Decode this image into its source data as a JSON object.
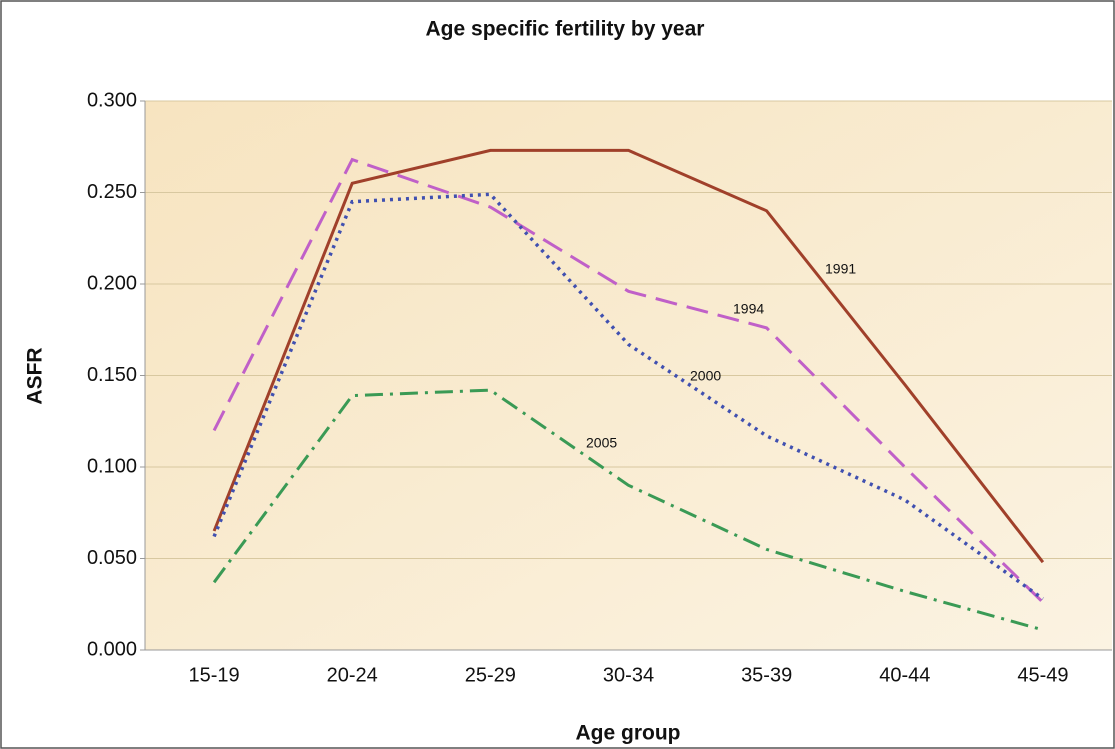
{
  "chart_data": {
    "type": "line",
    "title": "Age specific fertility by year",
    "x_label": "Age group",
    "y_label": "ASFR",
    "categories": [
      "15-19",
      "20-24",
      "25-29",
      "30-34",
      "35-39",
      "40-44",
      "45-49"
    ],
    "series": [
      {
        "name": "1991",
        "color": "#a0402a",
        "dash": "none",
        "values": [
          0.065,
          0.255,
          0.273,
          0.273,
          0.24,
          0.145,
          0.048
        ]
      },
      {
        "name": "1994",
        "color": "#c060c8",
        "dash": "22 10",
        "values": [
          0.12,
          0.268,
          0.242,
          0.196,
          0.176,
          0.1,
          0.026
        ]
      },
      {
        "name": "2000",
        "color": "#4050b0",
        "dash": "3 5",
        "values": [
          0.062,
          0.245,
          0.249,
          0.167,
          0.117,
          0.082,
          0.028
        ]
      },
      {
        "name": "2005",
        "color": "#3a9a55",
        "dash": "18 7 3 7",
        "values": [
          0.037,
          0.139,
          0.142,
          0.09,
          0.055,
          0.032,
          0.011
        ]
      }
    ],
    "ylim": [
      0,
      0.3
    ],
    "yticks": [
      {
        "value": 0,
        "label": "0.000"
      },
      {
        "value": 0.05,
        "label": "0.050"
      },
      {
        "value": 0.1,
        "label": "0.100"
      },
      {
        "value": 0.15,
        "label": "0.150"
      },
      {
        "value": 0.2,
        "label": "0.200"
      },
      {
        "value": 0.25,
        "label": "0.250"
      },
      {
        "value": 0.3,
        "label": "0.300"
      }
    ],
    "grid": true
  }
}
